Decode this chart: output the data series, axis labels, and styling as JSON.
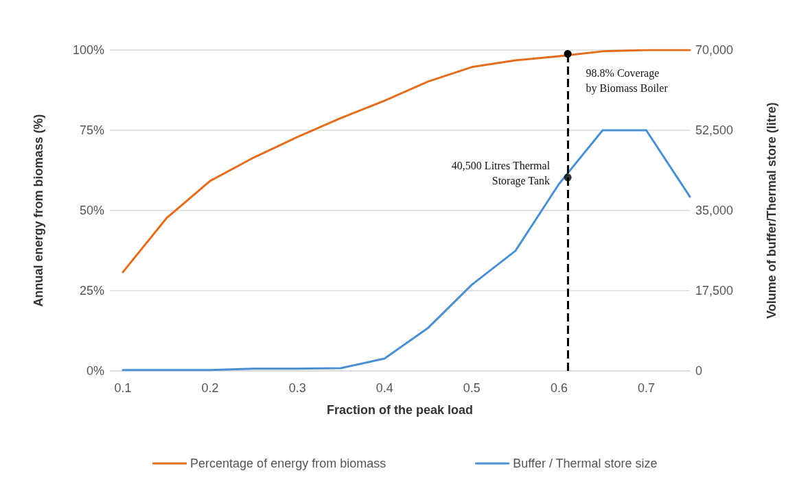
{
  "chart_data": {
    "type": "line",
    "xlabel": "Fraction of the peak load",
    "ylabel": "Annual energy from biomass (%)",
    "y2label": "Volume of buffer/Thermal store (litre)",
    "x": [
      0.1,
      0.15,
      0.2,
      0.25,
      0.3,
      0.35,
      0.4,
      0.45,
      0.5,
      0.55,
      0.6,
      0.65,
      0.7,
      0.75
    ],
    "series": [
      {
        "name": "Percentage of energy from biomass",
        "color": "#e46c1b",
        "values": [
          30.8,
          47.6,
          59.2,
          66.5,
          72.9,
          78.8,
          84.2,
          90.2,
          94.7,
          96.8,
          98.1,
          99.6,
          100,
          100
        ]
      },
      {
        "name": "Buffer / Thermal store size",
        "color": "#4a8fd1",
        "axis": "y2",
        "values": [
          200,
          200,
          200,
          500,
          500,
          600,
          2700,
          9400,
          18800,
          26200,
          40800,
          52500,
          52500,
          38000
        ]
      },
      {
        "type": "scatter",
        "color": "#000000",
        "axis": "y2",
        "x": [
          0.61
        ],
        "values": [
          42200
        ]
      }
    ],
    "xlim": [
      0.085,
      0.75
    ],
    "xticks": [
      0.1,
      0.2,
      0.3,
      0.4,
      0.5,
      0.6,
      0.7
    ],
    "ylim": [
      0,
      100
    ],
    "yticks": [
      {
        "value": 0,
        "label": "0%"
      },
      {
        "value": 25,
        "label": "25%"
      },
      {
        "value": 50,
        "label": "50%"
      },
      {
        "value": 75,
        "label": "75%"
      },
      {
        "value": 100,
        "label": "100%"
      }
    ],
    "y2lim": [
      0,
      70000
    ],
    "y2ticks": [
      0,
      {
        "value": 17500,
        "label": "17,500"
      },
      {
        "value": 35000,
        "label": "35,000"
      },
      {
        "value": 52500,
        "label": "52,500"
      },
      {
        "value": 70000,
        "label": "70,000"
      }
    ],
    "ref_lines": [
      {
        "axis": "x",
        "value": 0.61,
        "color": "#000000",
        "line_style": "dashed"
      }
    ],
    "annotations": [
      {
        "text": "98.8% Coverage\nby Biomass Boiler",
        "x": 0.61,
        "y": 98.8
      },
      "40,500 Litres Thermal\nStorage Tank"
    ],
    "grid": "y",
    "legend": "bottom",
    "line_style": "solid"
  }
}
